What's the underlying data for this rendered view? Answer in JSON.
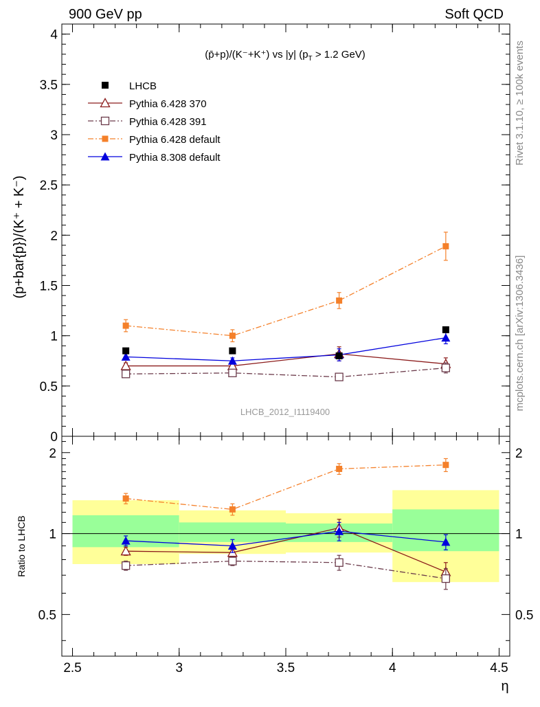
{
  "header": {
    "energy_label": "900 GeV pp",
    "process_label": "Soft QCD"
  },
  "side_labels": {
    "rivet": "Rivet 3.1.10, ≥ 100k events",
    "mcplots": "mcplots.cern.ch [arXiv:1306.3436]"
  },
  "chart_data": {
    "type": "line",
    "title_main": "(p̄+p)/(K⁻+K⁺) vs |y| (",
    "title_sub": "T",
    "title_rest": " > 1.2 GeV)",
    "title_p": "p",
    "watermark": "LHCB_2012_I1119400",
    "ylabel": "(p+bar{p})/(K⁺ + K⁻)",
    "ylabel_ratio": "Ratio to LHCB",
    "xlabel": "η",
    "xlim": [
      2.45,
      4.55
    ],
    "ylim": [
      0,
      4.1
    ],
    "ylim_ratio": [
      0.35,
      2.3
    ],
    "ratio_log": true,
    "x_ticks": [
      "2.5",
      "3",
      "3.5",
      "4",
      "4.5"
    ],
    "y_ticks": [
      "0",
      "0.5",
      "1",
      "1.5",
      "2",
      "2.5",
      "3",
      "3.5",
      "4"
    ],
    "ratio_ticks": [
      "0.5",
      "1",
      "2"
    ],
    "x": [
      2.75,
      3.25,
      3.75,
      4.25
    ],
    "data": {
      "name": "LHCB",
      "values": [
        0.85,
        0.85,
        0.8,
        1.06
      ],
      "bins": [
        [
          2.5,
          3.0
        ],
        [
          3.0,
          3.5
        ],
        [
          3.5,
          4.0
        ],
        [
          4.0,
          4.5
        ]
      ],
      "band_inner": [
        [
          0.89,
          1.17
        ],
        [
          0.93,
          1.1
        ],
        [
          0.93,
          1.09
        ],
        [
          0.86,
          1.23
        ]
      ],
      "band_outer": [
        [
          0.77,
          1.33
        ],
        [
          0.84,
          1.22
        ],
        [
          0.85,
          1.19
        ],
        [
          0.66,
          1.45
        ]
      ]
    },
    "series": [
      {
        "name": "Pythia 6.428 370",
        "color": "#8b1a1a",
        "marker": "triangle-open",
        "dash": "solid",
        "values": [
          0.7,
          0.7,
          0.82,
          0.72
        ],
        "errors": [
          0.03,
          0.03,
          0.07,
          0.06
        ],
        "ratio": [
          0.86,
          0.85,
          1.05,
          0.72
        ],
        "ratio_errors": [
          0.03,
          0.03,
          0.08,
          0.06
        ]
      },
      {
        "name": "Pythia 6.428 391",
        "color": "#6b3a4a",
        "marker": "square-open",
        "dash": "dashdot",
        "values": [
          0.62,
          0.63,
          0.59,
          0.68
        ],
        "errors": [
          0.02,
          0.02,
          0.03,
          0.05
        ],
        "ratio": [
          0.76,
          0.79,
          0.78,
          0.68
        ],
        "ratio_errors": [
          0.03,
          0.03,
          0.05,
          0.06
        ]
      },
      {
        "name": "Pythia 6.428 default",
        "color": "#f4802a",
        "marker": "square-filled",
        "dash": "dashdot",
        "values": [
          1.1,
          1.0,
          1.35,
          1.89
        ],
        "errors": [
          0.06,
          0.06,
          0.08,
          0.14
        ],
        "ratio": [
          1.35,
          1.23,
          1.74,
          1.8
        ],
        "ratio_errors": [
          0.06,
          0.06,
          0.08,
          0.1
        ]
      },
      {
        "name": "Pythia 8.308 default",
        "color": "#0000dd",
        "marker": "triangle-filled",
        "dash": "solid",
        "values": [
          0.79,
          0.75,
          0.81,
          0.98
        ],
        "errors": [
          0.03,
          0.03,
          0.06,
          0.06
        ],
        "ratio": [
          0.94,
          0.9,
          1.02,
          0.93
        ],
        "ratio_errors": [
          0.04,
          0.05,
          0.08,
          0.06
        ]
      }
    ]
  }
}
